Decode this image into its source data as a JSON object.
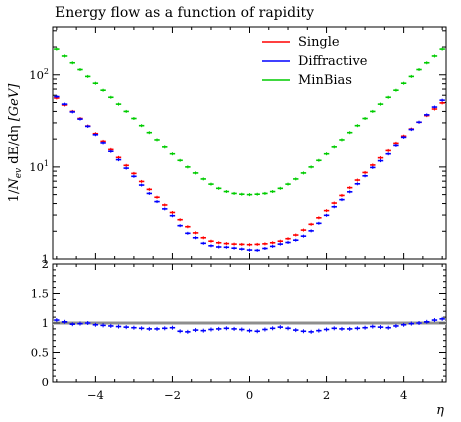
{
  "chart_data": {
    "title": "Energy flow as a function of rapidity",
    "xlabel": "η",
    "ylabel": "1/N_ev dE/dη [GeV]",
    "ylabel_parts": {
      "prefix": "1/",
      "n": "N",
      "n_sub": "ev",
      "mid": " dE/dη ",
      "unit": "[GeV]"
    },
    "type": "line",
    "x_range": [
      -5.1,
      5.1
    ],
    "x_ticks": [
      -4,
      -2,
      0,
      2,
      4
    ],
    "x_tick_labels": [
      "−4",
      "−2",
      "0",
      "2",
      "4"
    ],
    "main_panel": {
      "y_scale": "log",
      "y_range": [
        1,
        330
      ],
      "y_ticks": [
        {
          "value": 1,
          "base": "1",
          "exp": ""
        },
        {
          "value": 10,
          "base": "10",
          "exp": "1"
        },
        {
          "value": 100,
          "base": "10",
          "exp": "2"
        }
      ]
    },
    "ratio_panel": {
      "y_range": [
        0,
        2
      ],
      "y_ticks": [
        0,
        0.5,
        1,
        1.5,
        2
      ],
      "y_tick_labels": [
        "0",
        "0.5",
        "1",
        "1.5",
        "2"
      ],
      "reference": 1,
      "values": [
        1.05,
        1.02,
        0.98,
        0.99,
        1.0,
        0.97,
        0.96,
        0.95,
        0.94,
        0.93,
        0.92,
        0.91,
        0.9,
        0.9,
        0.91,
        0.92,
        0.86,
        0.85,
        0.88,
        0.87,
        0.89,
        0.9,
        0.91,
        0.9,
        0.89,
        0.87,
        0.86,
        0.89,
        0.91,
        0.93,
        0.91,
        0.88,
        0.86,
        0.85,
        0.87,
        0.89,
        0.91,
        0.9,
        0.9,
        0.91,
        0.92,
        0.94,
        0.93,
        0.92,
        0.95,
        0.97,
        0.99,
        1.0,
        1.02,
        1.05,
        1.07
      ]
    },
    "x": [
      -5.0,
      -4.8,
      -4.6,
      -4.4,
      -4.2,
      -4.0,
      -3.8,
      -3.6,
      -3.4,
      -3.2,
      -3.0,
      -2.8,
      -2.6,
      -2.4,
      -2.2,
      -2.0,
      -1.8,
      -1.6,
      -1.4,
      -1.2,
      -1.0,
      -0.8,
      -0.6,
      -0.4,
      -0.2,
      0.0,
      0.2,
      0.4,
      0.6,
      0.8,
      1.0,
      1.2,
      1.4,
      1.6,
      1.8,
      2.0,
      2.2,
      2.4,
      2.6,
      2.8,
      3.0,
      3.2,
      3.4,
      3.6,
      3.8,
      4.0,
      4.2,
      4.4,
      4.6,
      4.8,
      5.0
    ],
    "bin_width": 0.2,
    "series": [
      {
        "name": "Single",
        "color": "#ff0000",
        "values": [
          56.0,
          47.0,
          40.0,
          33.5,
          27.7,
          22.9,
          18.9,
          15.5,
          12.7,
          10.4,
          8.5,
          6.95,
          5.7,
          4.68,
          3.86,
          3.2,
          2.67,
          2.24,
          1.92,
          1.7,
          1.56,
          1.5,
          1.47,
          1.45,
          1.44,
          1.43,
          1.44,
          1.46,
          1.5,
          1.56,
          1.66,
          1.82,
          2.06,
          2.38,
          2.8,
          3.35,
          4.05,
          4.9,
          5.95,
          7.2,
          8.7,
          10.5,
          12.6,
          15.1,
          18.0,
          21.5,
          25.7,
          30.5,
          36.0,
          42.5,
          49.5
        ]
      },
      {
        "name": "Diffractive",
        "color": "#0000ff",
        "values": [
          58.0,
          48.0,
          39.5,
          33.0,
          27.5,
          22.3,
          18.2,
          14.8,
          12.0,
          9.7,
          7.9,
          6.35,
          5.15,
          4.2,
          3.5,
          2.95,
          2.3,
          1.9,
          1.7,
          1.48,
          1.39,
          1.35,
          1.34,
          1.31,
          1.28,
          1.25,
          1.24,
          1.3,
          1.37,
          1.45,
          1.51,
          1.6,
          1.77,
          2.02,
          2.44,
          2.98,
          3.69,
          4.41,
          5.36,
          6.55,
          8.0,
          9.87,
          11.7,
          13.9,
          17.1,
          20.9,
          25.4,
          30.5,
          36.7,
          44.6,
          53.0
        ]
      },
      {
        "name": "MinBias",
        "color": "#00cc00",
        "values": [
          190.0,
          160.0,
          135.0,
          114.0,
          96.0,
          81.0,
          68.0,
          57.0,
          48.0,
          40.0,
          33.5,
          28.0,
          23.5,
          19.6,
          16.5,
          13.9,
          11.8,
          10.0,
          8.6,
          7.4,
          6.5,
          5.85,
          5.4,
          5.15,
          5.05,
          5.0,
          5.05,
          5.15,
          5.4,
          5.85,
          6.5,
          7.4,
          8.6,
          10.0,
          11.8,
          13.9,
          16.5,
          19.6,
          23.5,
          28.0,
          33.5,
          40.0,
          48.0,
          57.0,
          68.0,
          81.0,
          96.0,
          114.0,
          135.0,
          160.0,
          190.0
        ]
      }
    ],
    "legend": {
      "position": "top-right",
      "entries": [
        "Single",
        "Diffractive",
        "MinBias"
      ]
    },
    "grid": false
  }
}
